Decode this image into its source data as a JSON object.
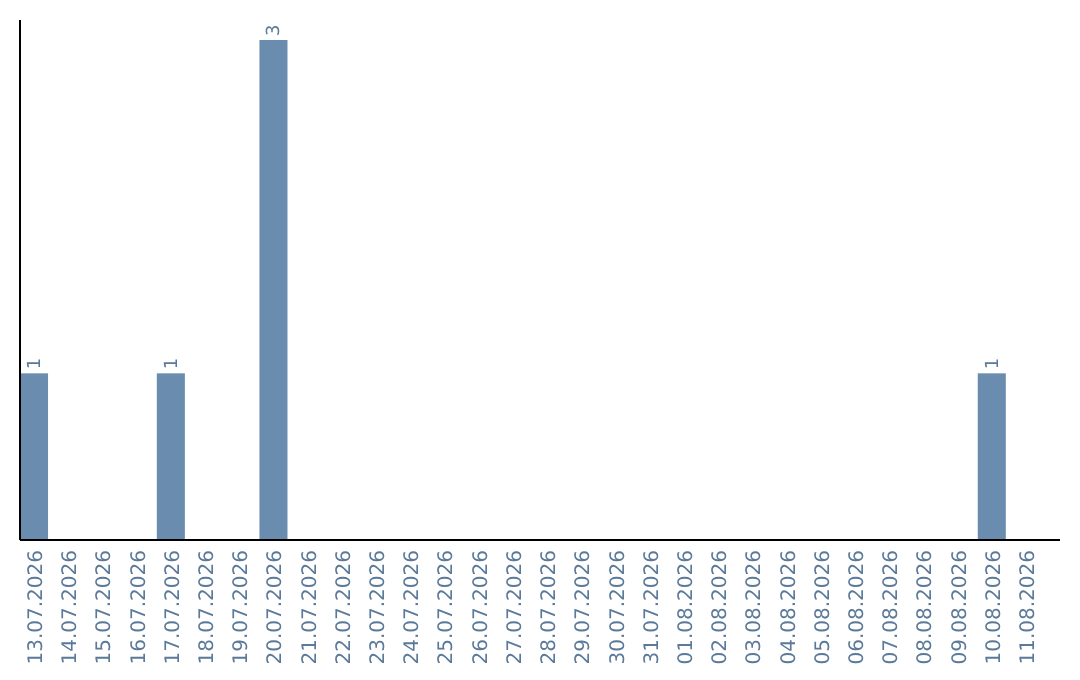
{
  "chart_data": {
    "type": "bar",
    "categories": [
      "13.07.2026",
      "14.07.2026",
      "15.07.2026",
      "16.07.2026",
      "17.07.2026",
      "18.07.2026",
      "19.07.2026",
      "20.07.2026",
      "21.07.2026",
      "22.07.2026",
      "23.07.2026",
      "24.07.2026",
      "25.07.2026",
      "26.07.2026",
      "27.07.2026",
      "28.07.2026",
      "29.07.2026",
      "30.07.2026",
      "31.07.2026",
      "01.08.2026",
      "02.08.2026",
      "03.08.2026",
      "04.08.2026",
      "05.08.2026",
      "06.08.2026",
      "07.08.2026",
      "08.08.2026",
      "09.08.2026",
      "10.08.2026",
      "11.08.2026"
    ],
    "values": [
      1,
      0,
      0,
      0,
      1,
      0,
      0,
      3,
      0,
      0,
      0,
      0,
      0,
      0,
      0,
      0,
      0,
      0,
      0,
      0,
      0,
      0,
      0,
      0,
      0,
      0,
      0,
      0,
      1,
      0
    ],
    "value_labels": [
      "1",
      null,
      null,
      null,
      "1",
      null,
      null,
      "3",
      null,
      null,
      null,
      null,
      null,
      null,
      null,
      null,
      null,
      null,
      null,
      null,
      null,
      null,
      null,
      null,
      null,
      null,
      null,
      null,
      "1",
      null
    ],
    "color": "#6a8caf",
    "grid": false
  }
}
